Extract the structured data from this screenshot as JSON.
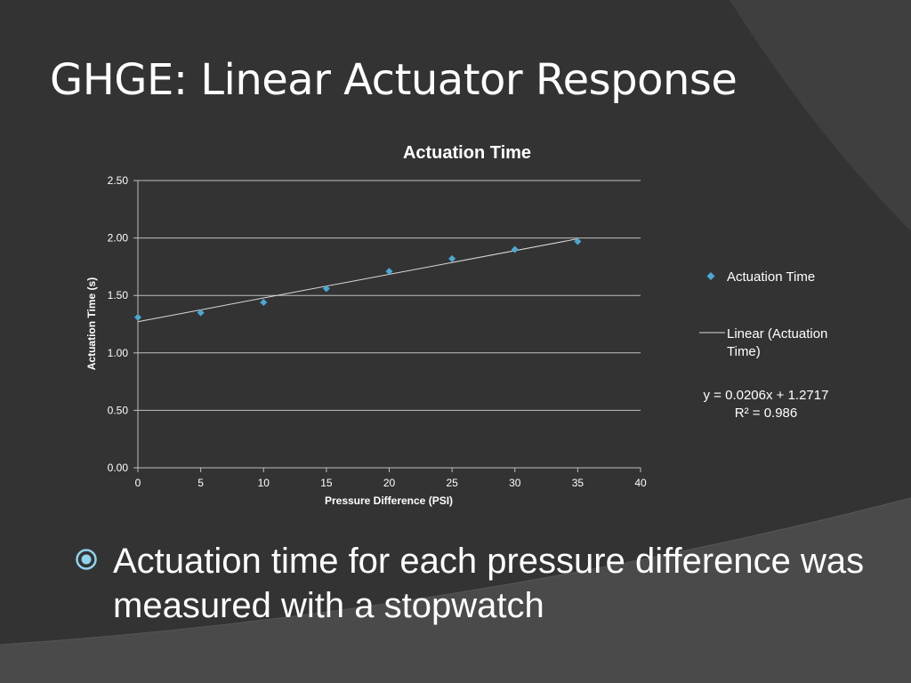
{
  "slide": {
    "title": "GHGE: Linear Actuator Response",
    "bullet": "Actuation time for each pressure difference was measured with a stopwatch",
    "bullet_icon": "circled-dot-icon"
  },
  "colors": {
    "background": "#333333",
    "text": "#ffffff",
    "series": "#4ba7d4",
    "trendline": "#d9d9d9",
    "bullet": "#8fd3ec"
  },
  "chart_data": {
    "type": "scatter",
    "title": "Actuation Time",
    "xlabel": "Pressure Difference (PSI)",
    "ylabel": "Actuation Time (s)",
    "xlim": [
      0,
      40
    ],
    "ylim": [
      0,
      2.5
    ],
    "x_ticks": [
      "0",
      "5",
      "10",
      "15",
      "20",
      "25",
      "30",
      "35",
      "40"
    ],
    "y_ticks": [
      "0.00",
      "0.50",
      "1.00",
      "1.50",
      "2.00",
      "2.50"
    ],
    "grid": "horizontal",
    "legend_position": "right",
    "series": [
      {
        "name": "Actuation Time",
        "marker": "diamond",
        "x": [
          0,
          5,
          10,
          15,
          20,
          25,
          30,
          35
        ],
        "y": [
          1.31,
          1.35,
          1.44,
          1.56,
          1.71,
          1.82,
          1.9,
          1.97
        ]
      }
    ],
    "trendline": {
      "name": "Linear (Actuation Time)",
      "slope": 0.0206,
      "intercept": 1.2717,
      "x_range": [
        0,
        35
      ],
      "equation": "y = 0.0206x + 1.2717",
      "r_squared": "R² = 0.986"
    }
  }
}
